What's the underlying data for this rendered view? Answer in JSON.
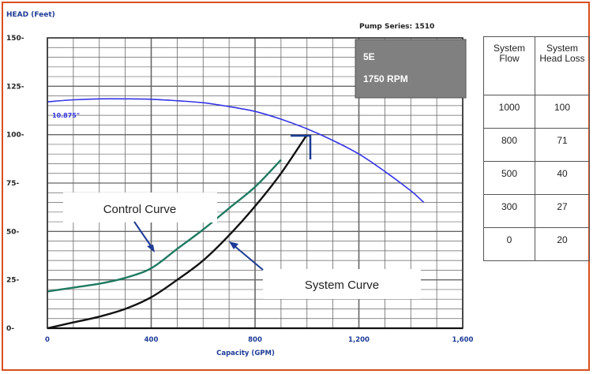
{
  "chart_data": {
    "type": "line",
    "xlabel": "Capacity (GPM)",
    "ylabel": "HEAD (Feet)",
    "pump_series": "Pump Series: 1510",
    "model": "5E",
    "speed": "1750 RPM",
    "xlim": [
      0,
      1600
    ],
    "ylim": [
      0,
      150
    ],
    "x_ticks": [
      0,
      400,
      800,
      1200,
      1600
    ],
    "x_tick_labels": [
      "0",
      "400",
      "800",
      "1,200",
      "1,600"
    ],
    "y_ticks": [
      0,
      25,
      50,
      75,
      100,
      125,
      150
    ],
    "y_tick_labels": [
      "0-",
      "25-",
      "50-",
      "75-",
      "100-",
      "125-",
      "150-"
    ],
    "grid": true,
    "series": [
      {
        "name": "10.875\"",
        "color": "#3434e6",
        "x": [
          0,
          100,
          200,
          300,
          400,
          500,
          600,
          700,
          800,
          900,
          1000,
          1100,
          1200,
          1300,
          1400,
          1450
        ],
        "y": [
          117,
          118,
          118.5,
          118.5,
          118.3,
          117.5,
          116.5,
          114.5,
          112,
          108,
          103,
          97,
          90,
          81,
          71,
          65
        ]
      },
      {
        "name": "Control Curve",
        "color": "#1f7a62",
        "x": [
          0,
          100,
          200,
          300,
          400,
          500,
          600,
          700,
          800,
          900
        ],
        "y": [
          19,
          21,
          23,
          26,
          31,
          41,
          51,
          62,
          73,
          87
        ]
      },
      {
        "name": "System Curve",
        "color": "#111111",
        "x": [
          0,
          100,
          200,
          300,
          400,
          500,
          600,
          700,
          800,
          900,
          1000
        ],
        "y": [
          0,
          3,
          6,
          10,
          16,
          25,
          35,
          48,
          63,
          80,
          100
        ]
      }
    ],
    "annotations": {
      "control_curve": "Control Curve",
      "system_curve": "System Curve"
    },
    "table": {
      "headers": [
        "System Flow",
        "System Head Loss"
      ],
      "rows": [
        [
          "1000",
          "100"
        ],
        [
          "800",
          "71"
        ],
        [
          "500",
          "40"
        ],
        [
          "300",
          "27"
        ],
        [
          "0",
          "20"
        ]
      ]
    }
  },
  "colors": {
    "frame": "#d9501e",
    "grid": "#666666",
    "label_box": "#808080",
    "arrow": "#1d3b96"
  }
}
